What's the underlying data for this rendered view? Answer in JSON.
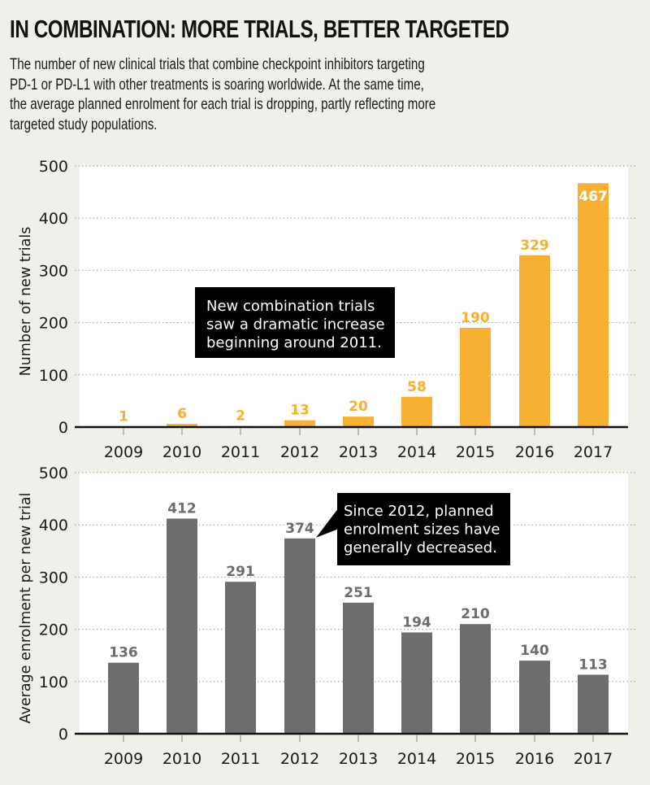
{
  "title": "IN COMBINATION: MORE TRIALS, BETTER TARGETED",
  "subtitle_lines": [
    "The number of new clinical trials that combine checkpoint inhibitors targeting",
    "PD-1 or PD-L1 with other treatments is soaring worldwide. At the same time,",
    "the average planned enrolment for each trial is dropping, partly reflecting more",
    "targeted study populations."
  ],
  "chart_data": [
    {
      "type": "bar",
      "title": "",
      "xlabel": "",
      "ylabel": "Number of new trials",
      "categories": [
        "2009",
        "2010",
        "2011",
        "2012",
        "2013",
        "2014",
        "2015",
        "2016",
        "2017"
      ],
      "values": [
        1,
        6,
        2,
        13,
        20,
        58,
        190,
        329,
        467
      ],
      "ylim": [
        0,
        500
      ],
      "yticks": [
        0,
        100,
        200,
        300,
        400,
        500
      ],
      "grid": true,
      "color": "#f7b033",
      "label_color": "#f7b033",
      "annotation": {
        "lines": [
          "New combination trials",
          "saw a dramatic increase",
          "beginning around 2011."
        ]
      }
    },
    {
      "type": "bar",
      "title": "",
      "xlabel": "",
      "ylabel": "Average enrolment per new trial",
      "categories": [
        "2009",
        "2010",
        "2011",
        "2012",
        "2013",
        "2014",
        "2015",
        "2016",
        "2017"
      ],
      "values": [
        136,
        412,
        291,
        374,
        251,
        194,
        210,
        140,
        113
      ],
      "ylim": [
        0,
        500
      ],
      "yticks": [
        0,
        100,
        200,
        300,
        400,
        500
      ],
      "grid": true,
      "color": "#6e6d6e",
      "label_color": "#6e6d6e",
      "annotation": {
        "lines": [
          "Since 2012, planned",
          "enrolment sizes have",
          "generally decreased."
        ],
        "points_to": "2012"
      }
    }
  ]
}
